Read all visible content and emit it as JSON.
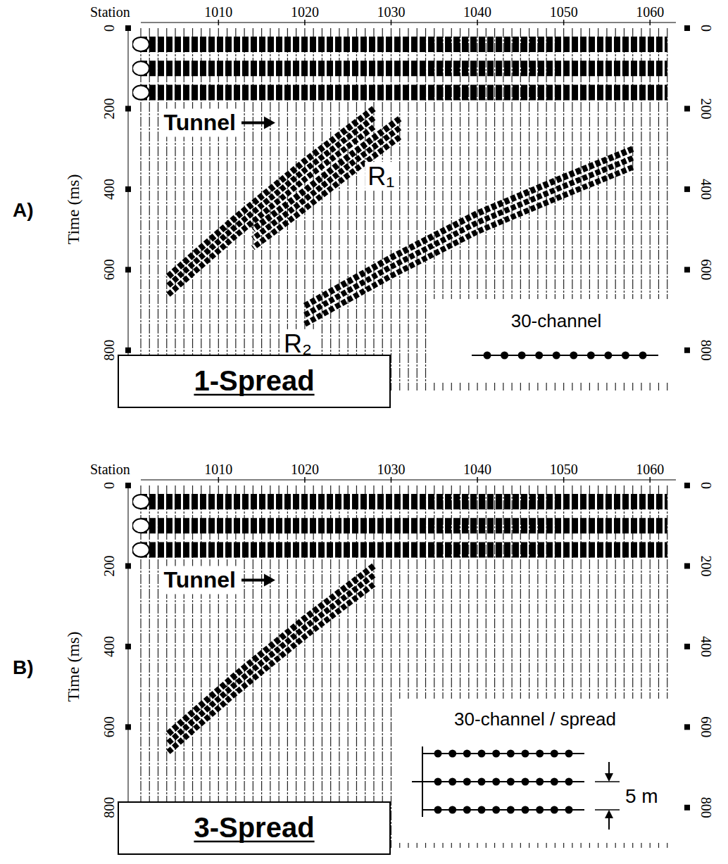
{
  "chart_data": [
    {
      "type": "line",
      "panel_label": "A)",
      "title": "1-Spread",
      "xlabel": "Station",
      "ylabel": "Time (ms)",
      "inset_label": "30-channel",
      "color": "#000000",
      "xlim": [
        1001,
        1063
      ],
      "xticks": [
        1010,
        1020,
        1030,
        1040,
        1050,
        1060
      ],
      "ylim": [
        0,
        900
      ],
      "yticks": [
        0,
        200,
        400,
        600,
        800
      ],
      "series": [
        {
          "line_style": "band",
          "x": [
            1001,
            1062
          ],
          "values": [
            40,
            40
          ]
        },
        {
          "line_style": "band",
          "x": [
            1001,
            1062
          ],
          "values": [
            100,
            100
          ]
        },
        {
          "line_style": "band",
          "x": [
            1001,
            1062
          ],
          "values": [
            160,
            160
          ]
        },
        {
          "name": "Tunnel",
          "line_style": "hatched",
          "x": [
            1028,
            1020,
            1012,
            1004
          ],
          "values": [
            200,
            330,
            470,
            620
          ]
        },
        {
          "name": "R₁",
          "line_style": "hatched",
          "x": [
            1031,
            1025,
            1019,
            1014
          ],
          "values": [
            225,
            320,
            420,
            500
          ]
        },
        {
          "name": "R₂",
          "line_style": "hatched",
          "x": [
            1058,
            1050,
            1040,
            1030,
            1020
          ],
          "values": [
            300,
            370,
            460,
            570,
            690
          ]
        }
      ]
    },
    {
      "type": "line",
      "panel_label": "B)",
      "title": "3-Spread",
      "xlabel": "Station",
      "ylabel": "Time (ms)",
      "inset_label": "30-channel / spread",
      "inset_spacing_label": "5 m",
      "color": "#000000",
      "xlim": [
        1001,
        1063
      ],
      "xticks": [
        1010,
        1020,
        1030,
        1040,
        1050,
        1060
      ],
      "ylim": [
        0,
        900
      ],
      "yticks": [
        0,
        200,
        400,
        600,
        800
      ],
      "series": [
        {
          "line_style": "band",
          "x": [
            1001,
            1062
          ],
          "values": [
            40,
            40
          ]
        },
        {
          "line_style": "band",
          "x": [
            1001,
            1062
          ],
          "values": [
            100,
            100
          ]
        },
        {
          "line_style": "band",
          "x": [
            1001,
            1062
          ],
          "values": [
            160,
            160
          ]
        },
        {
          "name": "Tunnel",
          "line_style": "hatched",
          "x": [
            1028,
            1020,
            1012,
            1004
          ],
          "values": [
            200,
            330,
            470,
            620
          ]
        }
      ]
    }
  ]
}
